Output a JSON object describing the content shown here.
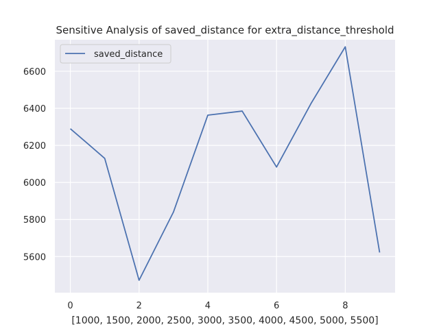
{
  "chart_data": {
    "type": "line",
    "title": "Sensitive Analysis of saved_distance for extra_distance_threshold",
    "xlabel": "[1000, 1500, 2000, 2500, 3000, 3500, 4000, 4500, 5000, 5500]",
    "ylabel": "",
    "x": [
      0,
      1,
      2,
      3,
      4,
      5,
      6,
      7,
      8,
      9
    ],
    "series": [
      {
        "name": "saved_distance",
        "values": [
          6290,
          6130,
          5472,
          5840,
          6363,
          6385,
          6083,
          6425,
          6732,
          5622
        ],
        "color": "#4c72b0"
      }
    ],
    "xlim": [
      -0.45,
      9.45
    ],
    "ylim": [
      5405,
      6770
    ],
    "xticks": [
      0,
      2,
      4,
      6,
      8
    ],
    "yticks": [
      5600,
      5800,
      6000,
      6200,
      6400,
      6600
    ],
    "grid": true,
    "legend": "upper-left",
    "background": "#eaeaf2",
    "grid_color": "#ffffff"
  }
}
